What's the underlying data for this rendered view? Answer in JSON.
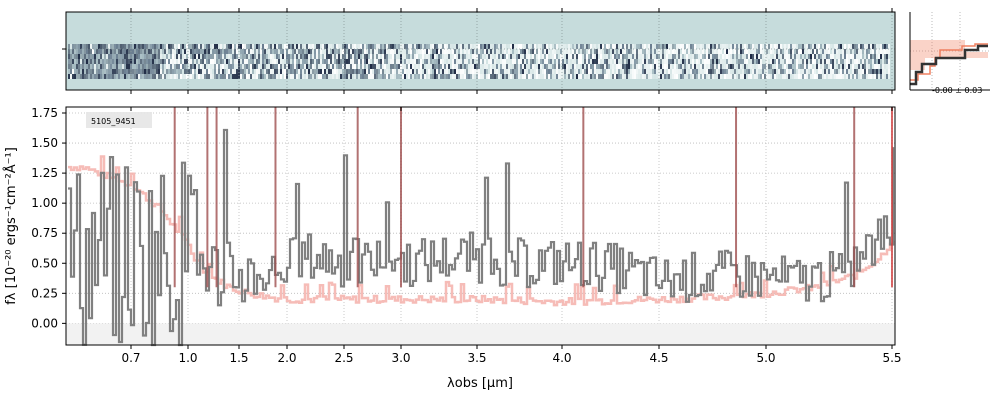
{
  "chart_data": [
    {
      "panel": "2d-spectrum",
      "type": "heatmap",
      "background_color": "#c6dcdc",
      "trace_color": "#1e2a44",
      "x_range_um": [
        0.5,
        5.52
      ],
      "grid": true
    },
    {
      "panel": "1d-spectrum",
      "type": "line",
      "label": "5105_9451",
      "xlabel": "λobs [μm]",
      "ylabel": "fλ [10⁻²⁰ ergs⁻¹cm⁻²Å⁻¹]",
      "xlim": [
        0.5,
        5.52
      ],
      "ylim": [
        -0.18,
        1.8
      ],
      "x_tick_values": [
        0.7,
        1.0,
        1.5,
        2.0,
        2.5,
        3.0,
        3.5,
        4.0,
        4.5,
        5.0,
        5.5
      ],
      "x_tick_labels": [
        "0.7",
        "1.0",
        "1.5",
        "2.0",
        "2.5",
        "3.0",
        "3.5",
        "4.0",
        "4.5",
        "5.0",
        "5.5"
      ],
      "y_tick_values": [
        0.0,
        0.25,
        0.5,
        0.75,
        1.0,
        1.25,
        1.5,
        1.75
      ],
      "y_tick_labels": [
        "0.00",
        "0.25",
        "0.50",
        "0.75",
        "1.00",
        "1.25",
        "1.50",
        "1.75"
      ],
      "grid": true,
      "series": [
        {
          "role": "flux",
          "color": "#808080",
          "x": [
            0.55,
            0.7,
            0.85,
            1.0,
            1.15,
            1.3,
            1.5,
            1.7,
            1.9,
            2.1,
            2.3,
            2.5,
            2.7,
            2.9,
            3.1,
            3.3,
            3.5,
            3.7,
            3.9,
            4.1,
            4.3,
            4.5,
            4.7,
            4.9,
            5.1,
            5.3,
            5.5
          ],
          "y": [
            0.55,
            0.6,
            0.55,
            0.6,
            0.5,
            0.4,
            0.4,
            0.4,
            0.45,
            0.55,
            0.55,
            0.5,
            0.5,
            0.55,
            0.5,
            0.55,
            0.55,
            0.5,
            0.5,
            0.5,
            0.45,
            0.35,
            0.4,
            0.4,
            0.35,
            0.4,
            0.8
          ]
        },
        {
          "role": "error",
          "color": "#f4b0aa",
          "x": [
            0.55,
            0.7,
            0.85,
            0.95,
            1.05,
            1.2,
            1.4,
            1.6,
            1.8,
            2.0,
            2.5,
            3.0,
            3.5,
            4.0,
            4.5,
            4.8,
            5.0,
            5.2,
            5.35,
            5.45,
            5.52
          ],
          "y": [
            1.3,
            1.15,
            0.95,
            0.75,
            0.55,
            0.4,
            0.3,
            0.25,
            0.22,
            0.2,
            0.2,
            0.2,
            0.2,
            0.18,
            0.2,
            0.22,
            0.25,
            0.3,
            0.4,
            0.55,
            0.75
          ]
        }
      ],
      "line_markers": [
        {
          "x": 0.93,
          "color": "#a05050"
        },
        {
          "x": 1.19,
          "color": "#a05050"
        },
        {
          "x": 1.28,
          "color": "#a05050"
        },
        {
          "x": 1.88,
          "color": "#a05050"
        },
        {
          "x": 2.62,
          "color": "#a05050"
        },
        {
          "x": 3.0,
          "color": "#a05050"
        },
        {
          "x": 4.11,
          "color": "#a05050"
        },
        {
          "x": 4.86,
          "color": "#a05050"
        },
        {
          "x": 5.35,
          "color": "#a05050"
        },
        {
          "x": 5.5,
          "color": "#d04040"
        }
      ]
    },
    {
      "panel": "profile",
      "type": "line",
      "annotation": "-0.00 ± 0.03",
      "series": [
        {
          "role": "data",
          "color": "#333333"
        },
        {
          "role": "model",
          "color": "#f08060"
        }
      ]
    }
  ]
}
